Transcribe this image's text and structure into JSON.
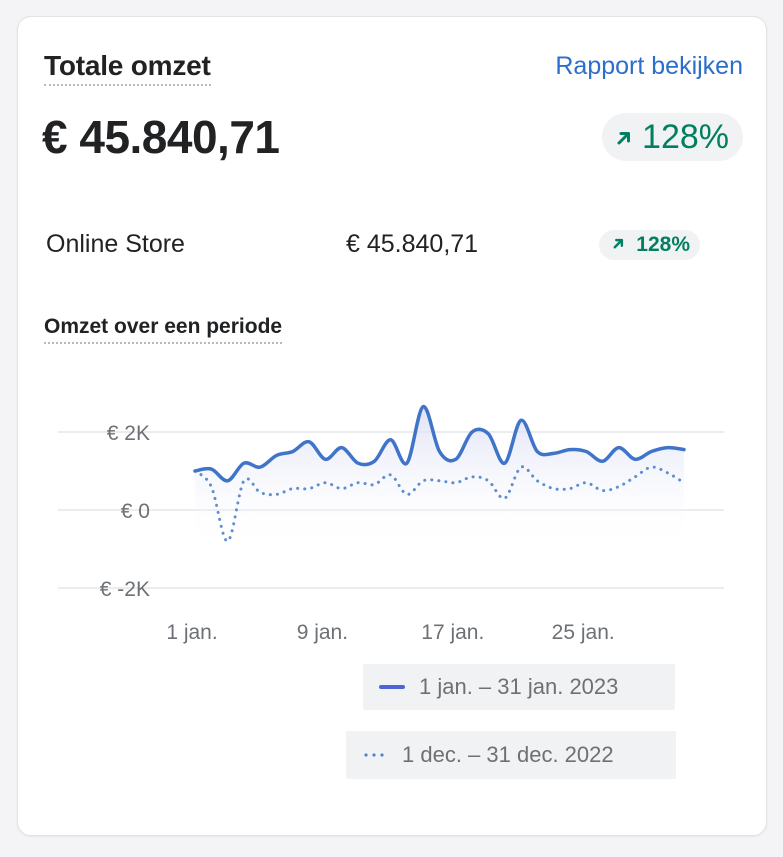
{
  "header": {
    "title": "Totale omzet",
    "report_link": "Rapport bekijken",
    "total": "€ 45.840,71",
    "change": "128%"
  },
  "breakdown": {
    "channel": "Online Store",
    "amount": "€ 45.840,71",
    "change": "128%"
  },
  "chart_title": "Omzet over een periode",
  "colors": {
    "accent": "#2c6ecb",
    "positive": "#008060",
    "current_series": "#3f74c9",
    "previous_series": "#5b8fd2"
  },
  "icons": {
    "change_arrow": "arrow-up-right-icon"
  },
  "chart_data": {
    "type": "line",
    "x": [
      1,
      2,
      3,
      4,
      5,
      6,
      7,
      8,
      9,
      10,
      11,
      12,
      13,
      14,
      15,
      16,
      17,
      18,
      19,
      20,
      21,
      22,
      23,
      24,
      25,
      26,
      27,
      28,
      29,
      30,
      31
    ],
    "x_ticks": [
      1,
      9,
      17,
      25
    ],
    "x_tick_labels": [
      "1 jan.",
      "9 jan.",
      "17 jan.",
      "25 jan."
    ],
    "y_ticks": [
      2000,
      0,
      -2000
    ],
    "y_tick_labels": [
      "€ 2K",
      "€ 0",
      "€ -2K"
    ],
    "ylim": [
      -2000,
      2500
    ],
    "grid": true,
    "series": [
      {
        "name": "1 jan. – 31 jan. 2023",
        "style": "solid",
        "values": [
          1000,
          1050,
          750,
          1200,
          1100,
          1400,
          1500,
          1750,
          1300,
          1600,
          1200,
          1250,
          1800,
          1200,
          2650,
          1500,
          1300,
          2000,
          1950,
          1200,
          2300,
          1500,
          1450,
          1550,
          1500,
          1250,
          1600,
          1300,
          1500,
          1600,
          1550
        ]
      },
      {
        "name": "1 dec. – 31 dec. 2022",
        "style": "dotted",
        "values": [
          1000,
          600,
          -800,
          750,
          450,
          400,
          550,
          550,
          700,
          550,
          700,
          650,
          900,
          400,
          750,
          750,
          700,
          850,
          750,
          300,
          1100,
          750,
          550,
          550,
          700,
          500,
          600,
          850,
          1100,
          950,
          700
        ]
      }
    ]
  },
  "legend": {
    "current": "1 jan. – 31 jan. 2023",
    "previous": "1 dec. – 31 dec. 2022"
  }
}
